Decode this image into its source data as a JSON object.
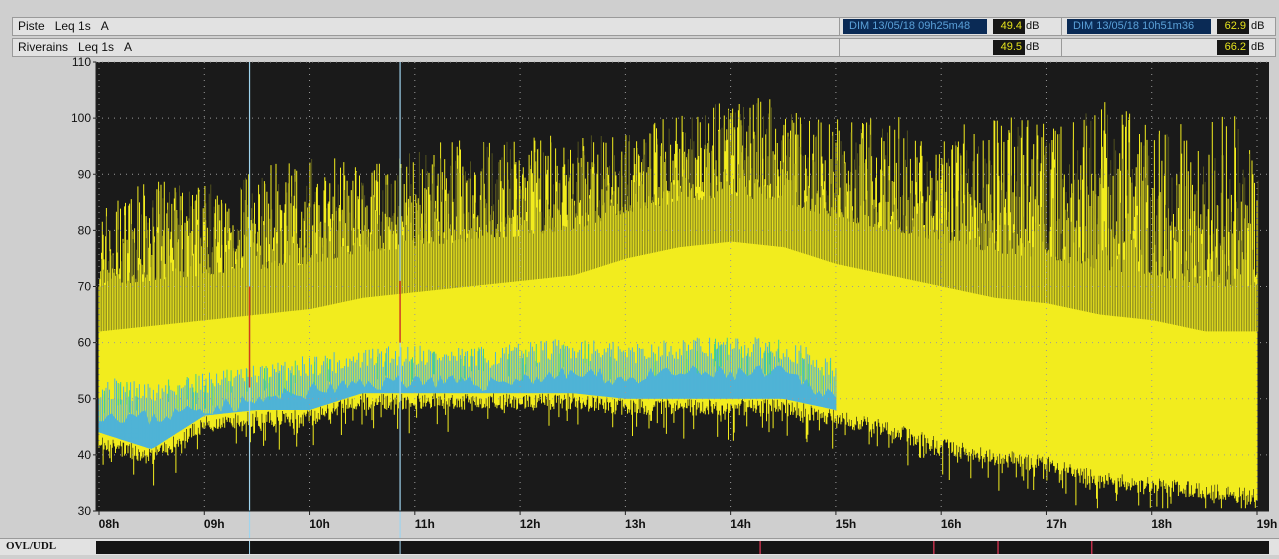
{
  "header": {
    "row1": {
      "name": "Piste",
      "metric": "Leq 1s",
      "weighting": "A"
    },
    "row2": {
      "name": "Riverains",
      "metric": "Leq 1s",
      "weighting": "A"
    },
    "cursor1": {
      "datetime": "DIM 13/05/18 09h25m48",
      "piste_value": "49.4",
      "riverains_value": "49.5",
      "unit": "dB"
    },
    "cursor2": {
      "datetime": "DIM 13/05/18 10h51m36",
      "piste_value": "62.9",
      "riverains_value": "66.2",
      "unit": "dB"
    }
  },
  "ovl": {
    "label": "OVL/UDL"
  },
  "colors": {
    "background": "#1a1a1a",
    "grid": "#9a9a9a",
    "piste": "#f2ec1e",
    "piste_dark": "#6a6a20",
    "riverains": "#4fb3d6",
    "riverains_accent": "#44d08a",
    "cursor": "#9fd4ee",
    "cursor_mark": "#d43b1a",
    "ovl_mark": "#c0304a"
  },
  "chart_data": {
    "type": "area",
    "x_ticks": [
      "08h",
      "09h",
      "10h",
      "11h",
      "12h",
      "13h",
      "14h",
      "15h",
      "16h",
      "17h",
      "18h",
      "19h"
    ],
    "y_ticks": [
      30,
      40,
      50,
      60,
      70,
      80,
      90,
      100,
      110
    ],
    "ylim": [
      30,
      110
    ],
    "xlim_hours": [
      8,
      19
    ],
    "grid": true,
    "series": [
      {
        "name": "Piste",
        "x_hours": [
          8.0,
          8.5,
          9.0,
          9.5,
          10.0,
          10.5,
          11.0,
          11.5,
          12.0,
          12.5,
          13.0,
          13.5,
          14.0,
          14.5,
          15.0,
          15.5,
          16.0,
          16.5,
          17.0,
          17.5,
          18.0,
          18.5,
          19.0
        ],
        "floor_db": [
          44,
          41,
          47,
          48,
          48,
          51,
          51,
          51,
          51,
          51,
          50,
          50,
          50,
          50,
          48,
          46,
          43,
          41,
          40,
          37,
          36,
          35,
          34
        ],
        "body_top_db": [
          70,
          71,
          72,
          73,
          74,
          76,
          77,
          78,
          79,
          80,
          83,
          85,
          86,
          85,
          82,
          80,
          78,
          76,
          75,
          73,
          72,
          70,
          70
        ],
        "peak_db": [
          85,
          88,
          88,
          90,
          93,
          92,
          94,
          96,
          96,
          97,
          98,
          100,
          104,
          102,
          99,
          100,
          97,
          99,
          99,
          102,
          98,
          99,
          100
        ]
      },
      {
        "name": "Riverains",
        "x_hours": [
          8.0,
          8.5,
          9.0,
          9.5,
          10.0,
          10.5,
          11.0,
          11.5,
          12.0,
          12.5,
          13.0,
          13.5,
          14.0,
          14.5,
          15.0
        ],
        "floor_db": [
          44,
          41,
          47,
          48,
          48,
          51,
          51,
          51,
          51,
          51,
          50,
          50,
          50,
          50,
          48
        ],
        "top_db": [
          50,
          49,
          51,
          52,
          54,
          55,
          56,
          55,
          56,
          57,
          56,
          57,
          57,
          57,
          53
        ]
      }
    ],
    "cursors_hours": [
      9.43,
      10.86
    ],
    "ovl_marks_hours": [
      14.28,
      15.93,
      16.54,
      17.43
    ]
  }
}
